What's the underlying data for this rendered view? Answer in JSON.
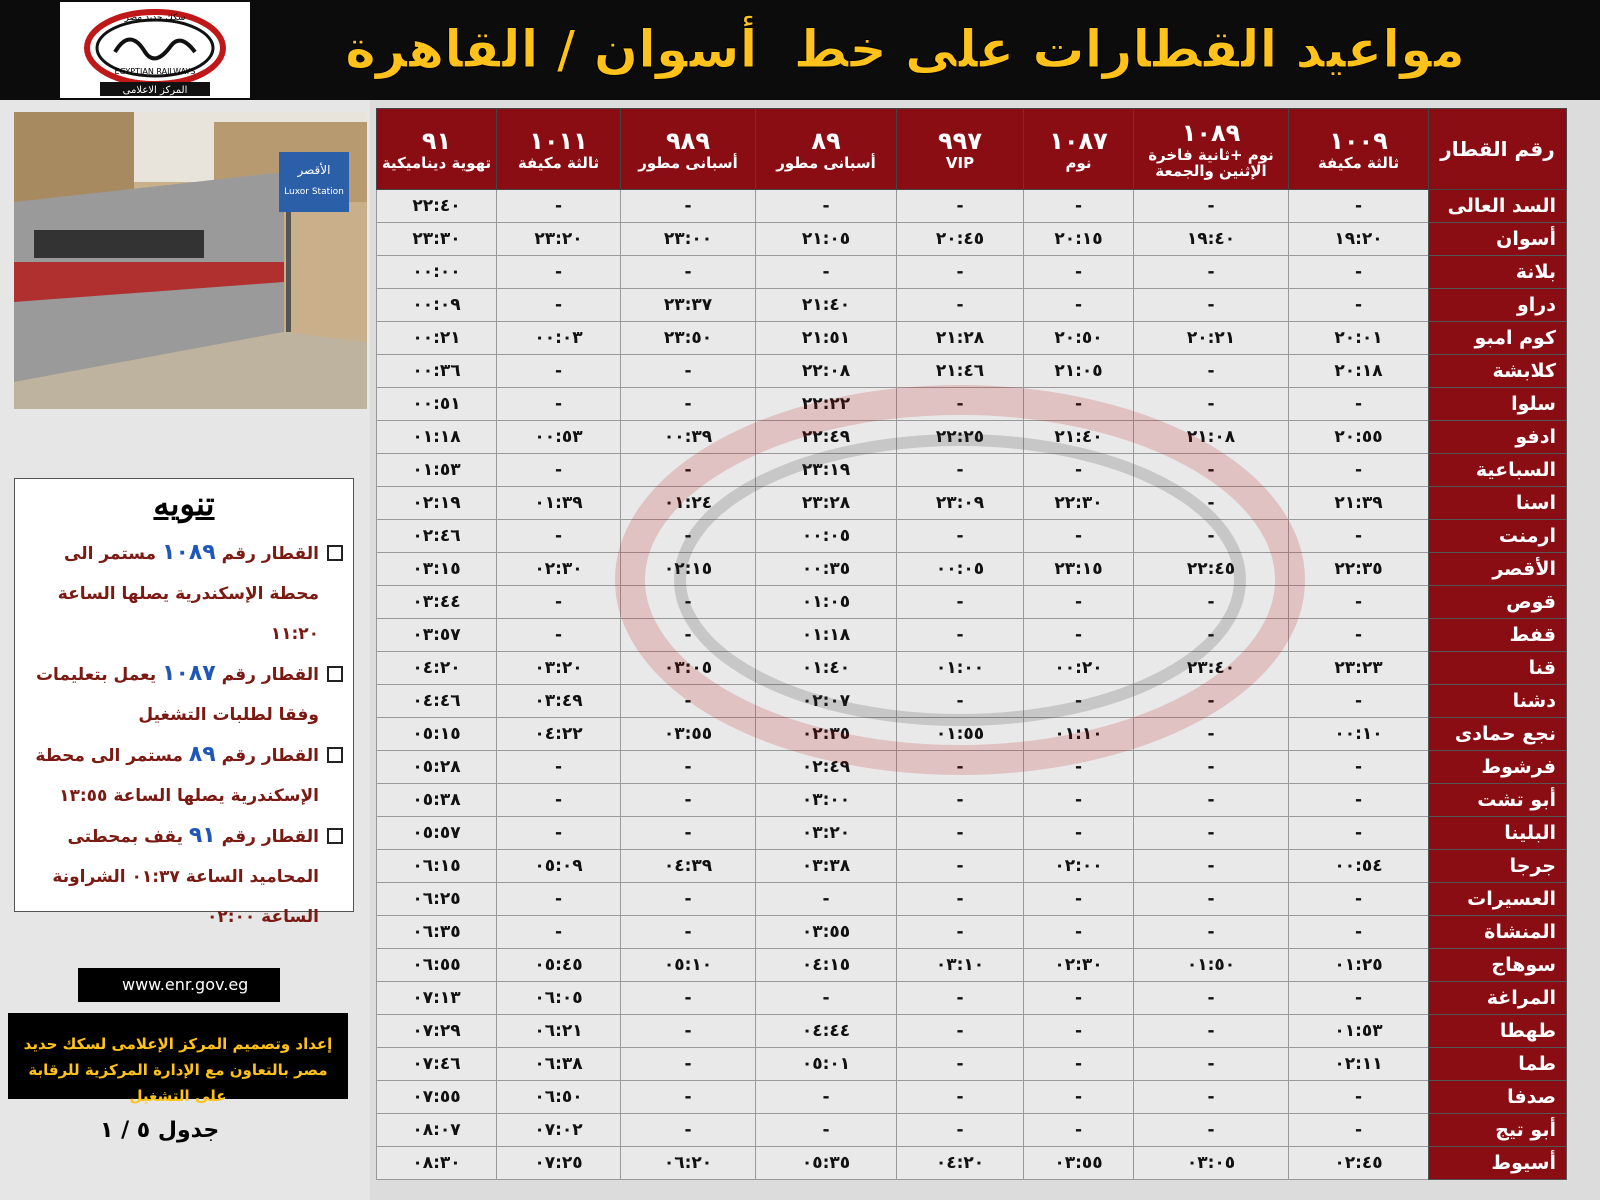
{
  "header": {
    "title": "مواعيد القطارات على خط  أسوان / القاهرة",
    "logo_ar": "سكك حديد مصر",
    "logo_en": "EGYPTIAN RAILWAYS",
    "logo_sub": "المركز الاعلامى"
  },
  "photo": {
    "sign_ar": "الأقصر",
    "sign_en": "Luxor Station"
  },
  "notice": {
    "title": "تنويه",
    "items": [
      {
        "label": "القطار رقم",
        "train": "١٠٨٩",
        "text": "مستمر الى محطة الإسكندرية يصلها الساعة ١١:٢٠"
      },
      {
        "label": "القطار رقم",
        "train": "١٠٨٧",
        "text": "يعمل بتعليمات وفقا لطلبات التشغيل"
      },
      {
        "label": "القطار رقم",
        "train": "٨٩",
        "text": "مستمر الى محطة الإسكندرية يصلها الساعة ١٣:٥٥"
      },
      {
        "label": "القطار رقم",
        "train": "٩١",
        "text": "يقف بمحطتى المحاميد الساعة ٠١:٣٧ الشراونة الساعة ٠٢:٠٠"
      }
    ]
  },
  "website": "www.enr.gov.eg",
  "credit": "إعداد وتصميم المركز الإعلامى لسكك حديد مصر بالتعاون مع الإدارة المركزية للرقابة على التشغيل",
  "page_label": "جدول ٥ / ١",
  "table": {
    "corner": "رقم القطار",
    "trains": [
      {
        "number": "١٠٠٩",
        "type": "ثالثة مكيفة"
      },
      {
        "number": "١٠٨٩",
        "type": "نوم +ثانية فاخرة الإثنين والجمعة"
      },
      {
        "number": "١٠٨٧",
        "type": "نوم"
      },
      {
        "number": "٩٩٧",
        "type": "VIP"
      },
      {
        "number": "٨٩",
        "type": "أسبانى مطور"
      },
      {
        "number": "٩٨٩",
        "type": "أسبانى مطور"
      },
      {
        "number": "١٠١١",
        "type": "ثالثة مكيفة"
      },
      {
        "number": "٩١",
        "type": "تهوية ديناميكية"
      }
    ],
    "rows": [
      {
        "station": "السد العالى",
        "times": [
          "-",
          "-",
          "-",
          "-",
          "-",
          "-",
          "-",
          "٢٢:٤٠"
        ]
      },
      {
        "station": "أسوان",
        "times": [
          "١٩:٢٠",
          "١٩:٤٠",
          "٢٠:١٥",
          "٢٠:٤٥",
          "٢١:٠٥",
          "٢٣:٠٠",
          "٢٣:٢٠",
          "٢٣:٣٠"
        ]
      },
      {
        "station": "بلانة",
        "times": [
          "-",
          "-",
          "-",
          "-",
          "-",
          "-",
          "-",
          "٠٠:٠٠"
        ]
      },
      {
        "station": "دراو",
        "times": [
          "-",
          "-",
          "-",
          "-",
          "٢١:٤٠",
          "٢٣:٣٧",
          "-",
          "٠٠:٠٩"
        ]
      },
      {
        "station": "كوم امبو",
        "times": [
          "٢٠:٠١",
          "٢٠:٢١",
          "٢٠:٥٠",
          "٢١:٢٨",
          "٢١:٥١",
          "٢٣:٥٠",
          "٠٠:٠٣",
          "٠٠:٢١"
        ]
      },
      {
        "station": "كلابشة",
        "times": [
          "٢٠:١٨",
          "-",
          "٢١:٠٥",
          "٢١:٤٦",
          "٢٢:٠٨",
          "-",
          "-",
          "٠٠:٣٦"
        ]
      },
      {
        "station": "سلوا",
        "times": [
          "-",
          "-",
          "-",
          "-",
          "٢٢:٢٢",
          "-",
          "-",
          "٠٠:٥١"
        ]
      },
      {
        "station": "ادفو",
        "times": [
          "٢٠:٥٥",
          "٢١:٠٨",
          "٢١:٤٠",
          "٢٢:٢٥",
          "٢٢:٤٩",
          "٠٠:٣٩",
          "٠٠:٥٣",
          "٠١:١٨"
        ]
      },
      {
        "station": "السباعية",
        "times": [
          "-",
          "-",
          "-",
          "-",
          "٢٣:١٩",
          "-",
          "-",
          "٠١:٥٣"
        ]
      },
      {
        "station": "اسنا",
        "times": [
          "٢١:٣٩",
          "-",
          "٢٢:٣٠",
          "٢٣:٠٩",
          "٢٣:٢٨",
          "٠١:٢٤",
          "٠١:٣٩",
          "٠٢:١٩"
        ]
      },
      {
        "station": "ارمنت",
        "times": [
          "-",
          "-",
          "-",
          "-",
          "٠٠:٠٥",
          "-",
          "-",
          "٠٢:٤٦"
        ]
      },
      {
        "station": "الأقصر",
        "times": [
          "٢٢:٣٥",
          "٢٢:٤٥",
          "٢٣:١٥",
          "٠٠:٠٥",
          "٠٠:٣٥",
          "٠٢:١٥",
          "٠٢:٣٠",
          "٠٣:١٥"
        ]
      },
      {
        "station": "قوص",
        "times": [
          "-",
          "-",
          "-",
          "-",
          "٠١:٠٥",
          "-",
          "-",
          "٠٣:٤٤"
        ]
      },
      {
        "station": "قفط",
        "times": [
          "-",
          "-",
          "-",
          "-",
          "٠١:١٨",
          "-",
          "-",
          "٠٣:٥٧"
        ]
      },
      {
        "station": "قنا",
        "times": [
          "٢٣:٢٣",
          "٢٣:٤٠",
          "٠٠:٢٠",
          "٠١:٠٠",
          "٠١:٤٠",
          "٠٣:٠٥",
          "٠٣:٢٠",
          "٠٤:٢٠"
        ]
      },
      {
        "station": "دشنا",
        "times": [
          "-",
          "-",
          "-",
          "-",
          "٠٢:٠٧",
          "-",
          "٠٣:٤٩",
          "٠٤:٤٦"
        ]
      },
      {
        "station": "نجع حمادى",
        "times": [
          "٠٠:١٠",
          "-",
          "٠١:١٠",
          "٠١:٥٥",
          "٠٢:٣٥",
          "٠٣:٥٥",
          "٠٤:٢٢",
          "٠٥:١٥"
        ]
      },
      {
        "station": "فرشوط",
        "times": [
          "-",
          "-",
          "-",
          "-",
          "٠٢:٤٩",
          "-",
          "-",
          "٠٥:٢٨"
        ]
      },
      {
        "station": "أبو تشت",
        "times": [
          "-",
          "-",
          "-",
          "-",
          "٠٣:٠٠",
          "-",
          "-",
          "٠٥:٣٨"
        ]
      },
      {
        "station": "البلينا",
        "times": [
          "-",
          "-",
          "-",
          "-",
          "٠٣:٢٠",
          "-",
          "-",
          "٠٥:٥٧"
        ]
      },
      {
        "station": "جرجا",
        "times": [
          "٠٠:٥٤",
          "-",
          "٠٢:٠٠",
          "-",
          "٠٣:٣٨",
          "٠٤:٣٩",
          "٠٥:٠٩",
          "٠٦:١٥"
        ]
      },
      {
        "station": "العسيرات",
        "times": [
          "-",
          "-",
          "-",
          "-",
          "-",
          "-",
          "-",
          "٠٦:٢٥"
        ]
      },
      {
        "station": "المنشاة",
        "times": [
          "-",
          "-",
          "-",
          "-",
          "٠٣:٥٥",
          "-",
          "-",
          "٠٦:٣٥"
        ]
      },
      {
        "station": "سوهاج",
        "times": [
          "٠١:٢٥",
          "٠١:٥٠",
          "٠٢:٣٠",
          "٠٣:١٠",
          "٠٤:١٥",
          "٠٥:١٠",
          "٠٥:٤٥",
          "٠٦:٥٥"
        ]
      },
      {
        "station": "المراغة",
        "times": [
          "-",
          "-",
          "-",
          "-",
          "-",
          "-",
          "٠٦:٠٥",
          "٠٧:١٣"
        ]
      },
      {
        "station": "طهطا",
        "times": [
          "٠١:٥٣",
          "-",
          "-",
          "-",
          "٠٤:٤٤",
          "-",
          "٠٦:٢١",
          "٠٧:٢٩"
        ]
      },
      {
        "station": "طما",
        "times": [
          "٠٢:١١",
          "-",
          "-",
          "-",
          "٠٥:٠١",
          "-",
          "٠٦:٣٨",
          "٠٧:٤٦"
        ]
      },
      {
        "station": "صدفا",
        "times": [
          "-",
          "-",
          "-",
          "-",
          "-",
          "-",
          "٠٦:٥٠",
          "٠٧:٥٥"
        ]
      },
      {
        "station": "أبو تيج",
        "times": [
          "-",
          "-",
          "-",
          "-",
          "-",
          "-",
          "٠٧:٠٢",
          "٠٨:٠٧"
        ]
      },
      {
        "station": "أسيوط",
        "times": [
          "٠٢:٤٥",
          "٠٣:٠٥",
          "٠٣:٥٥",
          "٠٤:٢٠",
          "٠٥:٣٥",
          "٠٦:٢٠",
          "٠٧:٢٥",
          "٠٨:٣٠"
        ]
      }
    ]
  }
}
